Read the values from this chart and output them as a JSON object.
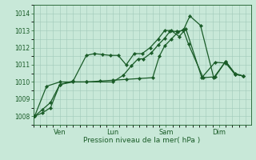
{
  "bg_color": "#c8e8d8",
  "grid_color": "#a0c8b8",
  "line_color": "#1a5c28",
  "ylim": [
    1007.5,
    1014.5
  ],
  "yticks": [
    1008,
    1009,
    1010,
    1011,
    1012,
    1013,
    1014
  ],
  "xlabel": "Pression niveau de la mer( hPa )",
  "xtick_labels": [
    "Ven",
    "Lun",
    "Sam",
    "Dim"
  ],
  "xtick_pos": [
    1,
    3,
    5,
    7
  ],
  "xlim": [
    0,
    8.2
  ],
  "series1_x": [
    0.05,
    0.35,
    0.65,
    1.0,
    1.5,
    2.0,
    2.5,
    3.0,
    3.5,
    4.0,
    4.5,
    4.75,
    4.95,
    5.2,
    5.45,
    5.65,
    5.85,
    6.4,
    6.85,
    7.25,
    7.6,
    7.9
  ],
  "series1_y": [
    1008.0,
    1008.2,
    1008.5,
    1009.85,
    1010.0,
    1010.0,
    1010.05,
    1010.1,
    1010.15,
    1010.2,
    1010.25,
    1011.5,
    1012.1,
    1012.5,
    1012.9,
    1013.05,
    1012.2,
    1010.25,
    1010.3,
    1011.2,
    1010.5,
    1010.35
  ],
  "series2_x": [
    0.05,
    0.35,
    0.65,
    1.0,
    1.5,
    2.0,
    2.3,
    2.6,
    2.9,
    3.2,
    3.5,
    3.8,
    4.1,
    4.4,
    4.7,
    4.95,
    5.2,
    5.5,
    5.75,
    6.35,
    6.85,
    7.25,
    7.6,
    7.9
  ],
  "series2_y": [
    1008.0,
    1008.4,
    1008.8,
    1009.85,
    1010.05,
    1011.55,
    1011.65,
    1011.6,
    1011.55,
    1011.55,
    1011.0,
    1011.65,
    1011.65,
    1012.0,
    1012.5,
    1013.0,
    1013.0,
    1012.65,
    1013.1,
    1010.25,
    1011.15,
    1011.1,
    1010.45,
    1010.35
  ],
  "series3_x": [
    0.05,
    0.5,
    1.0,
    2.0,
    3.0,
    3.4,
    3.7,
    3.95,
    4.15,
    4.45,
    4.7,
    4.95,
    5.15,
    5.4,
    5.65,
    5.9,
    6.3,
    6.8,
    7.25,
    7.6,
    7.9
  ],
  "series3_y": [
    1008.0,
    1009.75,
    1010.0,
    1010.0,
    1010.0,
    1010.4,
    1010.95,
    1011.35,
    1011.35,
    1011.7,
    1012.15,
    1012.55,
    1012.95,
    1012.95,
    1013.0,
    1013.85,
    1013.3,
    1010.25,
    1011.2,
    1010.45,
    1010.35
  ]
}
